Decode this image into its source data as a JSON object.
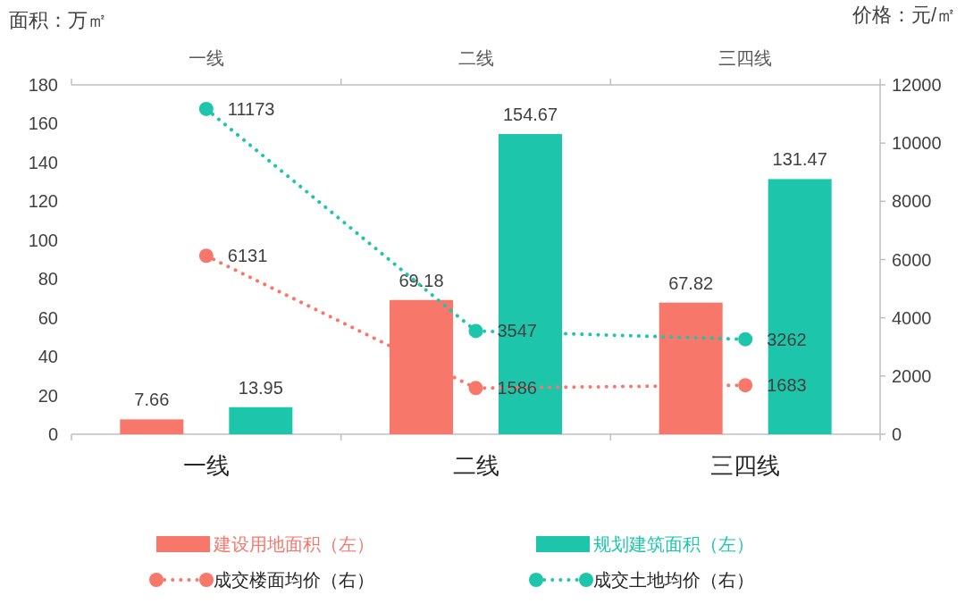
{
  "chart_data": {
    "type": "bar",
    "categories": [
      "一线",
      "二线",
      "三四线"
    ],
    "ylabel": "面积：万㎡",
    "y2label": "价格：元/㎡",
    "ylim": [
      0,
      180
    ],
    "yticks": [
      0,
      20,
      40,
      60,
      80,
      100,
      120,
      140,
      160,
      180
    ],
    "y2lim": [
      0,
      12000
    ],
    "y2ticks": [
      0,
      2000,
      4000,
      6000,
      8000,
      10000,
      12000
    ],
    "data_labels": true,
    "legend": "bottom",
    "marker": "circle",
    "series": [
      {
        "name": "建设用地面积（左）",
        "color": "#f8776b",
        "values": [
          7.66,
          69.18,
          67.82
        ]
      },
      {
        "name": "规划建筑面积（左）",
        "color": "#1dc6aa",
        "values": [
          13.95,
          154.67,
          131.47
        ]
      },
      {
        "name": "成交楼面均价（右）",
        "type": "line",
        "axis": "y2",
        "line_style": "dotted",
        "color": "#f8776b",
        "values": [
          6131,
          1586,
          1683
        ]
      },
      {
        "name": "成交土地均价（右）",
        "type": "line",
        "axis": "y2",
        "line_style": "dotted",
        "color": "#1dc6aa",
        "values": [
          11173,
          3547,
          3262
        ]
      }
    ]
  }
}
